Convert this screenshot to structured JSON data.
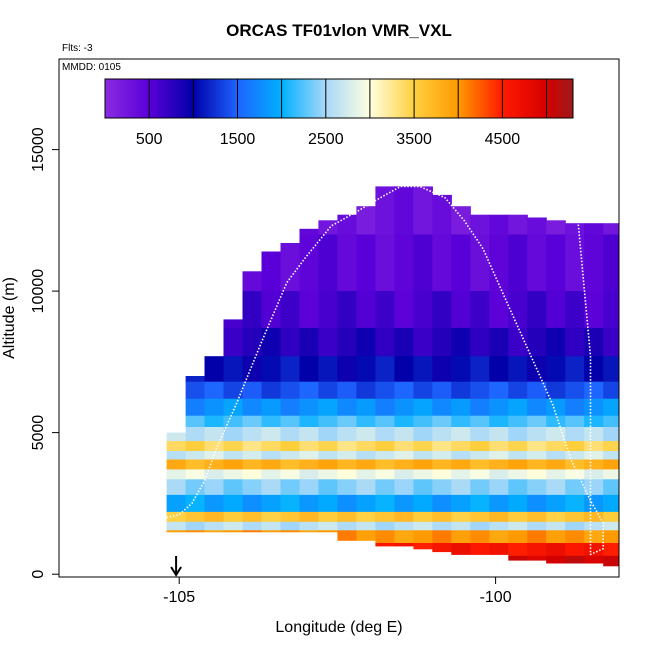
{
  "chart_data": {
    "type": "heatmap",
    "title": "ORCAS TF01vlon VMR_VXL",
    "flights_note": "Flts: -3",
    "date_note": "MMDD: 0105",
    "xlabel": "Longitude (deg E)",
    "ylabel": "Altitude (m)",
    "xlim": [
      -106.9,
      -98.05
    ],
    "ylim": [
      -100,
      18200
    ],
    "xticks": [
      {
        "value": -105,
        "label": "-105"
      },
      {
        "value": -100,
        "label": "-100"
      }
    ],
    "yticks": [
      {
        "value": 0,
        "label": "0"
      },
      {
        "value": 5000,
        "label": "5000"
      },
      {
        "value": 10000,
        "label": "10000"
      },
      {
        "value": 15000,
        "label": "15000"
      }
    ],
    "colorbar": {
      "range": [
        0,
        5300
      ],
      "ticks": [
        {
          "value": 500,
          "label": "500"
        },
        {
          "value": 1500,
          "label": "1500"
        },
        {
          "value": 2500,
          "label": "2500"
        },
        {
          "value": 3500,
          "label": "3500"
        },
        {
          "value": 4500,
          "label": "4500"
        }
      ],
      "stops": [
        {
          "value": 0,
          "color": "#8a2be2"
        },
        {
          "value": 500,
          "color": "#5a00d8"
        },
        {
          "value": 1000,
          "color": "#0000a8"
        },
        {
          "value": 1500,
          "color": "#1e64ff"
        },
        {
          "value": 2000,
          "color": "#00b0ff"
        },
        {
          "value": 2500,
          "color": "#a8d8f8"
        },
        {
          "value": 3000,
          "color": "#ffffe0"
        },
        {
          "value": 3500,
          "color": "#ffd040"
        },
        {
          "value": 4000,
          "color": "#ff9a00"
        },
        {
          "value": 4500,
          "color": "#ff1a00"
        },
        {
          "value": 5000,
          "color": "#d40000"
        },
        {
          "value": 5300,
          "color": "#9e1a1a"
        }
      ]
    },
    "grid": {
      "x_edges": [
        -105.2,
        -104.9,
        -104.6,
        -104.3,
        -104.0,
        -103.7,
        -103.4,
        -103.1,
        -102.8,
        -102.5,
        -102.2,
        -101.9,
        -101.6,
        -101.3,
        -101.0,
        -100.7,
        -100.4,
        -100.1,
        -99.8,
        -99.5,
        -99.2,
        -98.9,
        -98.6,
        -98.3,
        -98.05
      ],
      "layers": [
        {
          "y0": 12000,
          "y1": 13700,
          "value": 300
        },
        {
          "y0": 10000,
          "y1": 12000,
          "value": 450
        },
        {
          "y0": 8700,
          "y1": 10000,
          "value": 600
        },
        {
          "y0": 7700,
          "y1": 8700,
          "value": 800
        },
        {
          "y0": 6800,
          "y1": 7700,
          "value": 1050
        },
        {
          "y0": 6200,
          "y1": 6800,
          "value": 1400
        },
        {
          "y0": 5600,
          "y1": 6200,
          "value": 1800
        },
        {
          "y0": 5200,
          "y1": 5600,
          "value": 2200
        },
        {
          "y0": 4700,
          "y1": 5200,
          "value": 2600
        },
        {
          "y0": 4350,
          "y1": 4700,
          "value": 3400
        },
        {
          "y0": 4050,
          "y1": 4350,
          "value": 2700
        },
        {
          "y0": 3700,
          "y1": 4050,
          "value": 3800
        },
        {
          "y0": 3350,
          "y1": 3700,
          "value": 2900
        },
        {
          "y0": 2800,
          "y1": 3350,
          "value": 2400
        },
        {
          "y0": 2200,
          "y1": 2800,
          "value": 1900
        },
        {
          "y0": 1850,
          "y1": 2200,
          "value": 3600
        },
        {
          "y0": 1550,
          "y1": 1850,
          "value": 2600
        },
        {
          "y0": 1100,
          "y1": 1550,
          "value": 4000
        },
        {
          "y0": 650,
          "y1": 1100,
          "value": 4600
        },
        {
          "y0": 300,
          "y1": 650,
          "value": 5000
        }
      ],
      "column_tops": [
        5000,
        7000,
        7700,
        9000,
        10700,
        11400,
        11700,
        12200,
        12500,
        12700,
        13000,
        13800,
        13800,
        13700,
        13400,
        13000,
        12700,
        12700,
        12700,
        12600,
        12500,
        12400,
        12400,
        12400
      ],
      "column_bottoms": [
        1500,
        1500,
        1500,
        1500,
        1500,
        1500,
        1500,
        1500,
        1500,
        1200,
        1200,
        1000,
        1000,
        900,
        800,
        700,
        700,
        700,
        500,
        500,
        400,
        400,
        400,
        300
      ]
    },
    "flight_track": {
      "lon": [
        -105.2,
        -105.0,
        -104.8,
        -104.6,
        -104.4,
        -104.1,
        -103.7,
        -103.3,
        -103.0,
        -102.6,
        -102.2,
        -101.9,
        -101.5,
        -101.2,
        -100.8,
        -100.5,
        -100.2,
        -99.9,
        -99.5,
        -99.1,
        -98.8,
        -98.5,
        -98.3,
        -98.3,
        -98.5,
        -98.5,
        -98.7
      ],
      "alt": [
        2000,
        2100,
        2500,
        3300,
        4500,
        6000,
        8200,
        10300,
        11200,
        12300,
        12800,
        13200,
        13700,
        13700,
        13300,
        12500,
        11500,
        10000,
        8000,
        6000,
        4000,
        2600,
        1800,
        900,
        700,
        7700,
        12500
      ]
    },
    "marker": {
      "lon": -105.05,
      "label": "arrow"
    }
  }
}
